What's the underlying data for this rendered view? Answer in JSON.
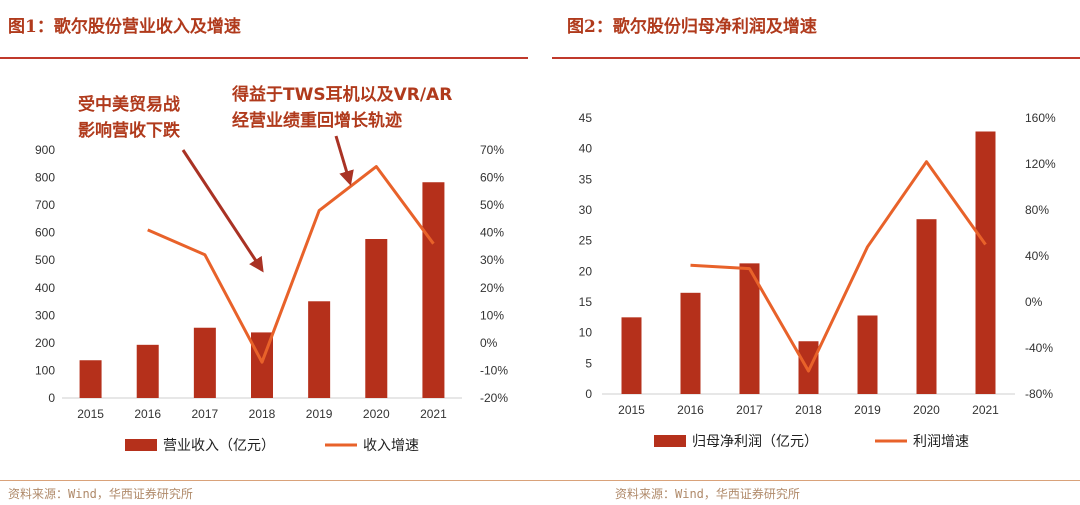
{
  "figures": [
    {
      "title": "图1：歌尔股份营业收入及增速"
    },
    {
      "title": "图2：歌尔股份归母净利润及增速"
    }
  ],
  "source_text": "资料来源：Wind，华西证券研究所",
  "colors": {
    "bar": "#b5301b",
    "line": "#e8622a",
    "title": "#b03a1c",
    "arrow": "#a93224"
  },
  "chart_data": [
    {
      "type": "bar+line",
      "categories": [
        "2015",
        "2016",
        "2017",
        "2018",
        "2019",
        "2020",
        "2021"
      ],
      "series": [
        {
          "name": "营业收入（亿元）",
          "type": "bar",
          "axis": "left",
          "values": [
            137,
            193,
            255,
            238,
            351,
            577,
            783
          ]
        },
        {
          "name": "收入增速",
          "type": "line",
          "axis": "right",
          "values": [
            null,
            41,
            32,
            -7,
            48,
            64,
            36
          ]
        }
      ],
      "ylim_left": [
        0,
        900
      ],
      "yticks_left": [
        "0",
        "100",
        "200",
        "300",
        "400",
        "500",
        "600",
        "700",
        "800",
        "900"
      ],
      "ylim_right": [
        -20,
        70
      ],
      "yticks_right": [
        "-20%",
        "-10%",
        "0%",
        "10%",
        "20%",
        "30%",
        "40%",
        "50%",
        "60%",
        "70%"
      ],
      "annotations": [
        {
          "lines": [
            "受中美贸易战",
            "影响营收下跌"
          ]
        },
        {
          "lines": [
            "得益于TWS耳机以及VR/AR",
            "经营业绩重回增长轨迹"
          ]
        }
      ],
      "legend_position": "bottom"
    },
    {
      "type": "bar+line",
      "categories": [
        "2015",
        "2016",
        "2017",
        "2018",
        "2019",
        "2020",
        "2021"
      ],
      "series": [
        {
          "name": "归母净利润（亿元）",
          "type": "bar",
          "axis": "left",
          "values": [
            12.5,
            16.5,
            21.3,
            8.6,
            12.8,
            28.5,
            42.8
          ]
        },
        {
          "name": "利润增速",
          "type": "line",
          "axis": "right",
          "values": [
            null,
            32,
            29,
            -60,
            48,
            122,
            50
          ]
        }
      ],
      "ylim_left": [
        0,
        45
      ],
      "yticks_left": [
        "0",
        "5",
        "10",
        "15",
        "20",
        "25",
        "30",
        "35",
        "40",
        "45"
      ],
      "ylim_right": [
        -80,
        160
      ],
      "yticks_right": [
        "-80%",
        "-40%",
        "0%",
        "40%",
        "80%",
        "120%",
        "160%"
      ],
      "legend_position": "bottom"
    }
  ]
}
